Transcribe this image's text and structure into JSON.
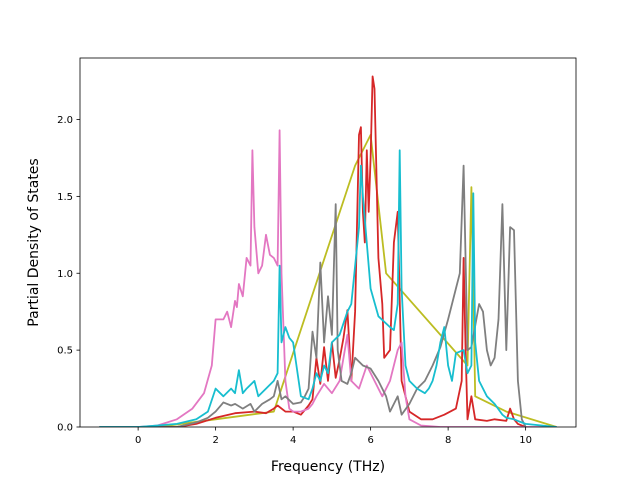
{
  "chart_data": {
    "type": "line",
    "title": "",
    "xlabel": "Frequency (THz)",
    "ylabel": "Partial Density of States",
    "xlim": [
      -1.5,
      11.3
    ],
    "ylim": [
      0.0,
      2.4
    ],
    "x_ticks": [
      0,
      2,
      4,
      6,
      8,
      10
    ],
    "y_ticks": [
      0.0,
      0.5,
      1.0,
      1.5,
      2.0
    ],
    "x_tick_labels": [
      "0",
      "2",
      "4",
      "6",
      "8",
      "10"
    ],
    "y_tick_labels": [
      "0.0",
      "0.5",
      "1.0",
      "1.5",
      "2.0"
    ],
    "grid": false,
    "legend": "none",
    "series": [
      {
        "color": "#bcbd22",
        "points": [
          [
            -1.0,
            0
          ],
          [
            0.5,
            0
          ],
          [
            2.0,
            0.05
          ],
          [
            3.5,
            0.1
          ],
          [
            5.6,
            1.7
          ],
          [
            6.0,
            1.9
          ],
          [
            6.4,
            1.0
          ],
          [
            8.5,
            0.4
          ],
          [
            8.6,
            1.56
          ],
          [
            8.7,
            0.2
          ],
          [
            9.5,
            0.1
          ],
          [
            10.8,
            0
          ]
        ]
      },
      {
        "color": "#d62728",
        "points": [
          [
            -1.0,
            0
          ],
          [
            1.0,
            0
          ],
          [
            1.5,
            0.02
          ],
          [
            2.0,
            0.06
          ],
          [
            2.5,
            0.09
          ],
          [
            3.0,
            0.1
          ],
          [
            3.3,
            0.09
          ],
          [
            3.5,
            0.12
          ],
          [
            3.6,
            0.14
          ],
          [
            3.8,
            0.1
          ],
          [
            4.0,
            0.1
          ],
          [
            4.2,
            0.08
          ],
          [
            4.4,
            0.14
          ],
          [
            4.5,
            0.18
          ],
          [
            4.6,
            0.45
          ],
          [
            4.7,
            0.28
          ],
          [
            4.8,
            0.52
          ],
          [
            4.9,
            0.3
          ],
          [
            5.0,
            0.55
          ],
          [
            5.1,
            0.32
          ],
          [
            5.2,
            0.44
          ],
          [
            5.3,
            0.58
          ],
          [
            5.4,
            0.76
          ],
          [
            5.5,
            0.3
          ],
          [
            5.6,
            0.75
          ],
          [
            5.7,
            1.9
          ],
          [
            5.75,
            1.95
          ],
          [
            5.8,
            1.4
          ],
          [
            5.85,
            1.2
          ],
          [
            5.9,
            1.8
          ],
          [
            5.95,
            1.4
          ],
          [
            6.0,
            1.75
          ],
          [
            6.05,
            2.28
          ],
          [
            6.1,
            2.2
          ],
          [
            6.2,
            1.1
          ],
          [
            6.3,
            0.8
          ],
          [
            6.35,
            0.45
          ],
          [
            6.5,
            0.5
          ],
          [
            6.6,
            1.2
          ],
          [
            6.7,
            1.4
          ],
          [
            6.8,
            0.3
          ],
          [
            7.0,
            0.1
          ],
          [
            7.3,
            0.05
          ],
          [
            7.6,
            0.05
          ],
          [
            7.9,
            0.08
          ],
          [
            8.2,
            0.12
          ],
          [
            8.35,
            0.3
          ],
          [
            8.4,
            1.1
          ],
          [
            8.45,
            0.5
          ],
          [
            8.5,
            0.05
          ],
          [
            8.6,
            0.2
          ],
          [
            8.7,
            0.05
          ],
          [
            9.0,
            0.04
          ],
          [
            9.2,
            0.05
          ],
          [
            9.5,
            0.04
          ],
          [
            9.6,
            0.12
          ],
          [
            9.7,
            0.05
          ],
          [
            9.8,
            0.02
          ],
          [
            10.0,
            0
          ]
        ]
      },
      {
        "color": "#e377c2",
        "points": [
          [
            -1.0,
            0
          ],
          [
            0.0,
            0
          ],
          [
            0.5,
            0.01
          ],
          [
            1.0,
            0.05
          ],
          [
            1.4,
            0.12
          ],
          [
            1.7,
            0.22
          ],
          [
            1.9,
            0.4
          ],
          [
            2.0,
            0.7
          ],
          [
            2.2,
            0.7
          ],
          [
            2.3,
            0.75
          ],
          [
            2.4,
            0.65
          ],
          [
            2.5,
            0.82
          ],
          [
            2.55,
            0.78
          ],
          [
            2.6,
            0.93
          ],
          [
            2.7,
            0.85
          ],
          [
            2.8,
            1.1
          ],
          [
            2.9,
            1.05
          ],
          [
            2.95,
            1.8
          ],
          [
            3.0,
            1.3
          ],
          [
            3.1,
            1.0
          ],
          [
            3.2,
            1.05
          ],
          [
            3.3,
            1.25
          ],
          [
            3.4,
            1.12
          ],
          [
            3.5,
            1.1
          ],
          [
            3.6,
            1.05
          ],
          [
            3.65,
            1.93
          ],
          [
            3.7,
            1.0
          ],
          [
            3.8,
            0.3
          ],
          [
            3.9,
            0.12
          ],
          [
            4.0,
            0.1
          ],
          [
            4.2,
            0.1
          ],
          [
            4.4,
            0.12
          ],
          [
            4.5,
            0.15
          ],
          [
            4.6,
            0.2
          ],
          [
            4.8,
            0.28
          ],
          [
            5.0,
            0.22
          ],
          [
            5.2,
            0.3
          ],
          [
            5.4,
            0.6
          ],
          [
            5.5,
            0.3
          ],
          [
            5.7,
            0.25
          ],
          [
            5.9,
            0.4
          ],
          [
            6.1,
            0.3
          ],
          [
            6.3,
            0.2
          ],
          [
            6.5,
            0.3
          ],
          [
            6.7,
            0.5
          ],
          [
            6.8,
            0.55
          ],
          [
            6.9,
            0.2
          ],
          [
            7.0,
            0.05
          ],
          [
            7.3,
            0.01
          ],
          [
            7.8,
            0
          ],
          [
            10.8,
            0
          ]
        ]
      },
      {
        "color": "#7f7f7f",
        "points": [
          [
            -1.0,
            0
          ],
          [
            1.0,
            0
          ],
          [
            1.5,
            0.03
          ],
          [
            1.8,
            0.06
          ],
          [
            2.0,
            0.1
          ],
          [
            2.2,
            0.16
          ],
          [
            2.4,
            0.14
          ],
          [
            2.5,
            0.15
          ],
          [
            2.7,
            0.12
          ],
          [
            2.9,
            0.15
          ],
          [
            3.0,
            0.1
          ],
          [
            3.2,
            0.15
          ],
          [
            3.4,
            0.18
          ],
          [
            3.5,
            0.2
          ],
          [
            3.6,
            0.3
          ],
          [
            3.7,
            0.18
          ],
          [
            3.8,
            0.2
          ],
          [
            4.0,
            0.15
          ],
          [
            4.2,
            0.16
          ],
          [
            4.3,
            0.2
          ],
          [
            4.4,
            0.25
          ],
          [
            4.5,
            0.62
          ],
          [
            4.6,
            0.45
          ],
          [
            4.7,
            1.07
          ],
          [
            4.8,
            0.55
          ],
          [
            4.9,
            0.85
          ],
          [
            5.0,
            0.6
          ],
          [
            5.1,
            1.45
          ],
          [
            5.15,
            0.5
          ],
          [
            5.25,
            0.3
          ],
          [
            5.4,
            0.28
          ],
          [
            5.5,
            0.35
          ],
          [
            5.6,
            0.45
          ],
          [
            5.8,
            0.4
          ],
          [
            6.0,
            0.38
          ],
          [
            6.2,
            0.3
          ],
          [
            6.4,
            0.2
          ],
          [
            6.5,
            0.1
          ],
          [
            6.6,
            0.15
          ],
          [
            6.7,
            0.2
          ],
          [
            6.8,
            0.08
          ],
          [
            7.0,
            0.15
          ],
          [
            7.2,
            0.25
          ],
          [
            7.4,
            0.3
          ],
          [
            7.6,
            0.4
          ],
          [
            7.8,
            0.52
          ],
          [
            8.0,
            0.7
          ],
          [
            8.2,
            0.9
          ],
          [
            8.3,
            1.0
          ],
          [
            8.4,
            1.7
          ],
          [
            8.5,
            0.5
          ],
          [
            8.6,
            0.52
          ],
          [
            8.8,
            0.8
          ],
          [
            8.9,
            0.75
          ],
          [
            9.0,
            0.5
          ],
          [
            9.1,
            0.4
          ],
          [
            9.2,
            0.45
          ],
          [
            9.3,
            0.7
          ],
          [
            9.4,
            1.45
          ],
          [
            9.5,
            0.5
          ],
          [
            9.6,
            1.3
          ],
          [
            9.7,
            1.28
          ],
          [
            9.8,
            0.3
          ],
          [
            9.9,
            0.05
          ],
          [
            10.0,
            0
          ]
        ]
      },
      {
        "color": "#17becf",
        "points": [
          [
            -1.0,
            0
          ],
          [
            0.0,
            0
          ],
          [
            0.5,
            0.01
          ],
          [
            1.0,
            0.02
          ],
          [
            1.5,
            0.05
          ],
          [
            1.8,
            0.1
          ],
          [
            2.0,
            0.25
          ],
          [
            2.2,
            0.2
          ],
          [
            2.4,
            0.25
          ],
          [
            2.5,
            0.22
          ],
          [
            2.6,
            0.37
          ],
          [
            2.7,
            0.22
          ],
          [
            2.8,
            0.25
          ],
          [
            3.0,
            0.3
          ],
          [
            3.1,
            0.2
          ],
          [
            3.3,
            0.25
          ],
          [
            3.5,
            0.3
          ],
          [
            3.6,
            0.35
          ],
          [
            3.65,
            1.05
          ],
          [
            3.7,
            0.55
          ],
          [
            3.8,
            0.65
          ],
          [
            3.9,
            0.58
          ],
          [
            4.0,
            0.55
          ],
          [
            4.2,
            0.2
          ],
          [
            4.4,
            0.18
          ],
          [
            4.5,
            0.25
          ],
          [
            4.6,
            0.35
          ],
          [
            4.7,
            0.3
          ],
          [
            4.8,
            0.4
          ],
          [
            4.9,
            0.35
          ],
          [
            5.0,
            0.55
          ],
          [
            5.2,
            0.6
          ],
          [
            5.4,
            0.75
          ],
          [
            5.5,
            0.8
          ],
          [
            5.7,
            1.3
          ],
          [
            5.75,
            1.7
          ],
          [
            5.8,
            1.5
          ],
          [
            6.0,
            0.9
          ],
          [
            6.2,
            0.72
          ],
          [
            6.5,
            0.65
          ],
          [
            6.6,
            0.63
          ],
          [
            6.7,
            0.8
          ],
          [
            6.75,
            1.8
          ],
          [
            6.8,
            0.9
          ],
          [
            6.9,
            0.4
          ],
          [
            7.0,
            0.3
          ],
          [
            7.2,
            0.25
          ],
          [
            7.4,
            0.22
          ],
          [
            7.5,
            0.25
          ],
          [
            7.6,
            0.3
          ],
          [
            7.7,
            0.4
          ],
          [
            7.8,
            0.55
          ],
          [
            7.9,
            0.65
          ],
          [
            8.0,
            0.4
          ],
          [
            8.1,
            0.3
          ],
          [
            8.2,
            0.48
          ],
          [
            8.4,
            0.5
          ],
          [
            8.5,
            0.35
          ],
          [
            8.6,
            0.4
          ],
          [
            8.65,
            1.52
          ],
          [
            8.7,
            0.55
          ],
          [
            8.8,
            0.3
          ],
          [
            9.0,
            0.2
          ],
          [
            9.2,
            0.15
          ],
          [
            9.4,
            0.08
          ],
          [
            9.5,
            0.06
          ],
          [
            9.7,
            0.05
          ],
          [
            9.8,
            0.04
          ],
          [
            10.0,
            0.02
          ],
          [
            10.8,
            0
          ]
        ]
      }
    ]
  }
}
